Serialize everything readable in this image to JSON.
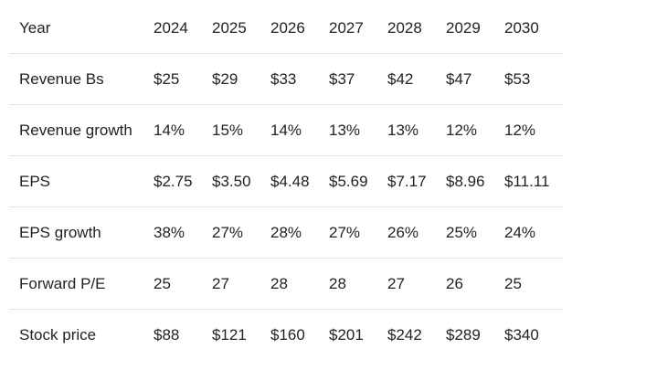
{
  "table": {
    "header": [
      "Year",
      "2024",
      "2025",
      "2026",
      "2027",
      "2028",
      "2029",
      "2030"
    ],
    "rows": [
      [
        "Revenue Bs",
        "$25",
        "$29",
        "$33",
        "$37",
        "$42",
        "$47",
        "$53"
      ],
      [
        "Revenue growth",
        "14%",
        "15%",
        "14%",
        "13%",
        "13%",
        "12%",
        "12%"
      ],
      [
        "EPS",
        "$2.75",
        "$3.50",
        "$4.48",
        "$5.69",
        "$7.17",
        "$8.96",
        "$11.11"
      ],
      [
        "EPS growth",
        "38%",
        "27%",
        "28%",
        "27%",
        "26%",
        "25%",
        "24%"
      ],
      [
        "Forward P/E",
        "25",
        "27",
        "28",
        "28",
        "27",
        "26",
        "25"
      ],
      [
        "Stock price",
        "$88",
        "$121",
        "$160",
        "$201",
        "$242",
        "$289",
        "$340"
      ]
    ]
  }
}
